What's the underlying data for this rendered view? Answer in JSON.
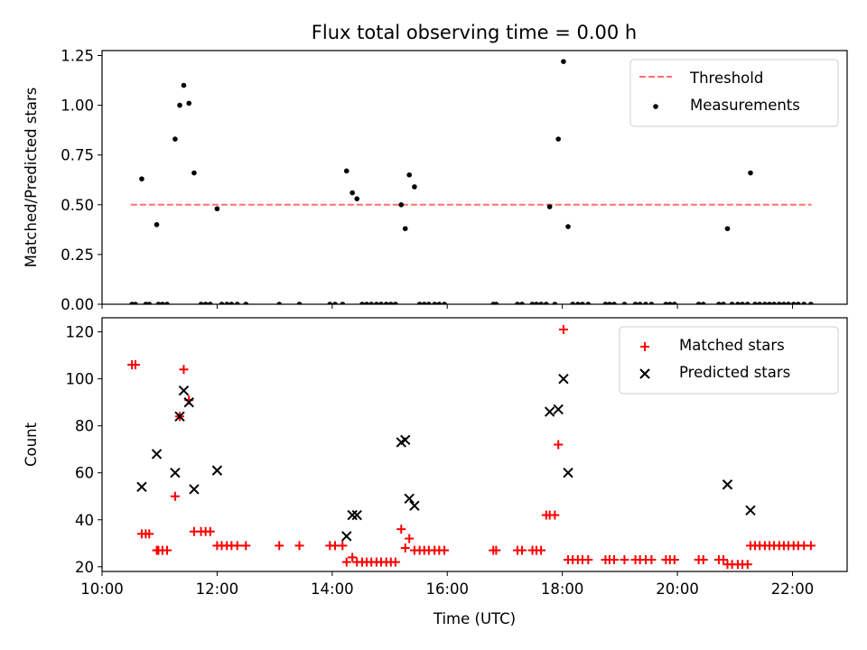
{
  "title": "Flux total observing time = 0.00 h",
  "colors": {
    "threshold": "#ff7070",
    "measurement": "#000000",
    "matched": "#ff0000",
    "predicted": "#000000"
  },
  "chart_data": [
    {
      "type": "scatter",
      "ylabel": "Matched/Predicted stars",
      "xlabel": "",
      "xlim": [
        10.0,
        22.95
      ],
      "ylim": [
        0.0,
        1.275
      ],
      "yticks": [
        0.0,
        0.25,
        0.5,
        0.75,
        1.0,
        1.25
      ],
      "ytick_labels": [
        "0.00",
        "0.25",
        "0.50",
        "0.75",
        "1.00",
        "1.25"
      ],
      "xticks": [
        10,
        12,
        14,
        16,
        18,
        20,
        22
      ],
      "legend_position": "top-right",
      "grid": false,
      "threshold": {
        "name": "Threshold",
        "value": 0.5,
        "x_range": [
          10.5,
          22.33
        ]
      },
      "series": [
        {
          "name": "Measurements",
          "points": [
            [
              10.52,
              0
            ],
            [
              10.58,
              0
            ],
            [
              10.69,
              0.63
            ],
            [
              10.76,
              0
            ],
            [
              10.82,
              0
            ],
            [
              10.95,
              0.4
            ],
            [
              10.98,
              0
            ],
            [
              11.05,
              0
            ],
            [
              11.13,
              0
            ],
            [
              11.27,
              0.83
            ],
            [
              11.35,
              1.0
            ],
            [
              11.42,
              1.1
            ],
            [
              11.51,
              1.01
            ],
            [
              11.6,
              0.66
            ],
            [
              11.72,
              0
            ],
            [
              11.8,
              0
            ],
            [
              11.88,
              0
            ],
            [
              12.0,
              0.48
            ],
            [
              12.08,
              0
            ],
            [
              12.17,
              0
            ],
            [
              12.25,
              0
            ],
            [
              12.35,
              0
            ],
            [
              12.5,
              0
            ],
            [
              13.08,
              0
            ],
            [
              13.43,
              0
            ],
            [
              13.96,
              0
            ],
            [
              14.05,
              0
            ],
            [
              14.18,
              0
            ],
            [
              14.25,
              0.67
            ],
            [
              14.35,
              0.56
            ],
            [
              14.43,
              0.53
            ],
            [
              14.52,
              0
            ],
            [
              14.6,
              0
            ],
            [
              14.68,
              0
            ],
            [
              14.77,
              0
            ],
            [
              14.85,
              0
            ],
            [
              14.94,
              0
            ],
            [
              15.02,
              0
            ],
            [
              15.1,
              0
            ],
            [
              15.2,
              0.5
            ],
            [
              15.27,
              0.38
            ],
            [
              15.34,
              0.65
            ],
            [
              15.43,
              0.59
            ],
            [
              15.52,
              0
            ],
            [
              15.6,
              0
            ],
            [
              15.68,
              0
            ],
            [
              15.78,
              0
            ],
            [
              15.86,
              0
            ],
            [
              15.95,
              0
            ],
            [
              16.8,
              0
            ],
            [
              16.85,
              0
            ],
            [
              17.22,
              0
            ],
            [
              17.3,
              0
            ],
            [
              17.48,
              0
            ],
            [
              17.55,
              0
            ],
            [
              17.63,
              0
            ],
            [
              17.72,
              0
            ],
            [
              17.78,
              0.49
            ],
            [
              17.87,
              0
            ],
            [
              17.93,
              0.83
            ],
            [
              18.02,
              1.22
            ],
            [
              18.1,
              0.39
            ],
            [
              18.18,
              0
            ],
            [
              18.27,
              0
            ],
            [
              18.35,
              0
            ],
            [
              18.45,
              0
            ],
            [
              18.75,
              0
            ],
            [
              18.82,
              0
            ],
            [
              18.9,
              0
            ],
            [
              19.08,
              0
            ],
            [
              19.27,
              0
            ],
            [
              19.35,
              0
            ],
            [
              19.45,
              0
            ],
            [
              19.55,
              0
            ],
            [
              19.8,
              0
            ],
            [
              19.87,
              0
            ],
            [
              19.95,
              0
            ],
            [
              20.37,
              0
            ],
            [
              20.45,
              0
            ],
            [
              20.72,
              0
            ],
            [
              20.8,
              0
            ],
            [
              20.87,
              0.38
            ],
            [
              20.95,
              0
            ],
            [
              21.05,
              0
            ],
            [
              21.13,
              0
            ],
            [
              21.22,
              0
            ],
            [
              21.27,
              0.66
            ],
            [
              21.35,
              0
            ],
            [
              21.43,
              0
            ],
            [
              21.52,
              0
            ],
            [
              21.6,
              0
            ],
            [
              21.68,
              0
            ],
            [
              21.77,
              0
            ],
            [
              21.85,
              0
            ],
            [
              21.93,
              0
            ],
            [
              22.02,
              0
            ],
            [
              22.1,
              0
            ],
            [
              22.2,
              0
            ],
            [
              22.32,
              0
            ]
          ]
        }
      ]
    },
    {
      "type": "scatter",
      "ylabel": "Count",
      "xlabel": "Time (UTC)",
      "xlim": [
        10.0,
        22.95
      ],
      "ylim": [
        18.0,
        126.0
      ],
      "yticks": [
        20,
        40,
        60,
        80,
        100,
        120
      ],
      "ytick_labels": [
        "20",
        "40",
        "60",
        "80",
        "100",
        "120"
      ],
      "xticks": [
        10,
        12,
        14,
        16,
        18,
        20,
        22
      ],
      "xtick_labels": [
        "10:00",
        "12:00",
        "14:00",
        "16:00",
        "18:00",
        "20:00",
        "22:00"
      ],
      "legend_position": "top-right",
      "grid": false,
      "series": [
        {
          "name": "Matched stars",
          "points": [
            [
              10.52,
              106
            ],
            [
              10.58,
              106
            ],
            [
              10.69,
              34
            ],
            [
              10.76,
              34
            ],
            [
              10.82,
              34
            ],
            [
              10.95,
              27
            ],
            [
              10.98,
              27
            ],
            [
              11.05,
              27
            ],
            [
              11.13,
              27
            ],
            [
              11.27,
              50
            ],
            [
              11.35,
              84
            ],
            [
              11.42,
              104
            ],
            [
              11.51,
              91
            ],
            [
              11.6,
              35
            ],
            [
              11.72,
              35
            ],
            [
              11.8,
              35
            ],
            [
              11.88,
              35
            ],
            [
              12.0,
              29
            ],
            [
              12.08,
              29
            ],
            [
              12.17,
              29
            ],
            [
              12.25,
              29
            ],
            [
              12.35,
              29
            ],
            [
              12.5,
              29
            ],
            [
              13.08,
              29
            ],
            [
              13.43,
              29
            ],
            [
              13.96,
              29
            ],
            [
              14.05,
              29
            ],
            [
              14.18,
              29
            ],
            [
              14.25,
              22
            ],
            [
              14.35,
              24
            ],
            [
              14.43,
              22
            ],
            [
              14.52,
              22
            ],
            [
              14.6,
              22
            ],
            [
              14.68,
              22
            ],
            [
              14.77,
              22
            ],
            [
              14.85,
              22
            ],
            [
              14.94,
              22
            ],
            [
              15.02,
              22
            ],
            [
              15.1,
              22
            ],
            [
              15.2,
              36
            ],
            [
              15.27,
              28
            ],
            [
              15.34,
              32
            ],
            [
              15.43,
              27
            ],
            [
              15.52,
              27
            ],
            [
              15.6,
              27
            ],
            [
              15.68,
              27
            ],
            [
              15.78,
              27
            ],
            [
              15.86,
              27
            ],
            [
              15.95,
              27
            ],
            [
              16.8,
              27
            ],
            [
              16.85,
              27
            ],
            [
              17.22,
              27
            ],
            [
              17.3,
              27
            ],
            [
              17.48,
              27
            ],
            [
              17.55,
              27
            ],
            [
              17.63,
              27
            ],
            [
              17.72,
              42
            ],
            [
              17.78,
              42
            ],
            [
              17.87,
              42
            ],
            [
              17.93,
              72
            ],
            [
              18.02,
              121
            ],
            [
              18.1,
              23
            ],
            [
              18.18,
              23
            ],
            [
              18.27,
              23
            ],
            [
              18.35,
              23
            ],
            [
              18.45,
              23
            ],
            [
              18.75,
              23
            ],
            [
              18.82,
              23
            ],
            [
              18.9,
              23
            ],
            [
              19.08,
              23
            ],
            [
              19.27,
              23
            ],
            [
              19.35,
              23
            ],
            [
              19.45,
              23
            ],
            [
              19.55,
              23
            ],
            [
              19.8,
              23
            ],
            [
              19.87,
              23
            ],
            [
              19.95,
              23
            ],
            [
              20.37,
              23
            ],
            [
              20.45,
              23
            ],
            [
              20.72,
              23
            ],
            [
              20.8,
              23
            ],
            [
              20.87,
              21
            ],
            [
              20.95,
              21
            ],
            [
              21.05,
              21
            ],
            [
              21.13,
              21
            ],
            [
              21.22,
              21
            ],
            [
              21.27,
              29
            ],
            [
              21.35,
              29
            ],
            [
              21.43,
              29
            ],
            [
              21.52,
              29
            ],
            [
              21.6,
              29
            ],
            [
              21.68,
              29
            ],
            [
              21.77,
              29
            ],
            [
              21.85,
              29
            ],
            [
              21.93,
              29
            ],
            [
              22.02,
              29
            ],
            [
              22.1,
              29
            ],
            [
              22.2,
              29
            ],
            [
              22.32,
              29
            ]
          ]
        },
        {
          "name": "Predicted stars",
          "points": [
            [
              10.69,
              54
            ],
            [
              10.95,
              68
            ],
            [
              11.27,
              60
            ],
            [
              11.35,
              84
            ],
            [
              11.42,
              95
            ],
            [
              11.51,
              90
            ],
            [
              11.6,
              53
            ],
            [
              12.0,
              61
            ],
            [
              14.25,
              33
            ],
            [
              14.35,
              42
            ],
            [
              14.43,
              42
            ],
            [
              15.2,
              73
            ],
            [
              15.27,
              74
            ],
            [
              15.34,
              49
            ],
            [
              15.43,
              46
            ],
            [
              17.78,
              86
            ],
            [
              17.93,
              87
            ],
            [
              18.02,
              100
            ],
            [
              18.1,
              60
            ],
            [
              20.87,
              55
            ],
            [
              21.27,
              44
            ]
          ]
        }
      ]
    }
  ]
}
